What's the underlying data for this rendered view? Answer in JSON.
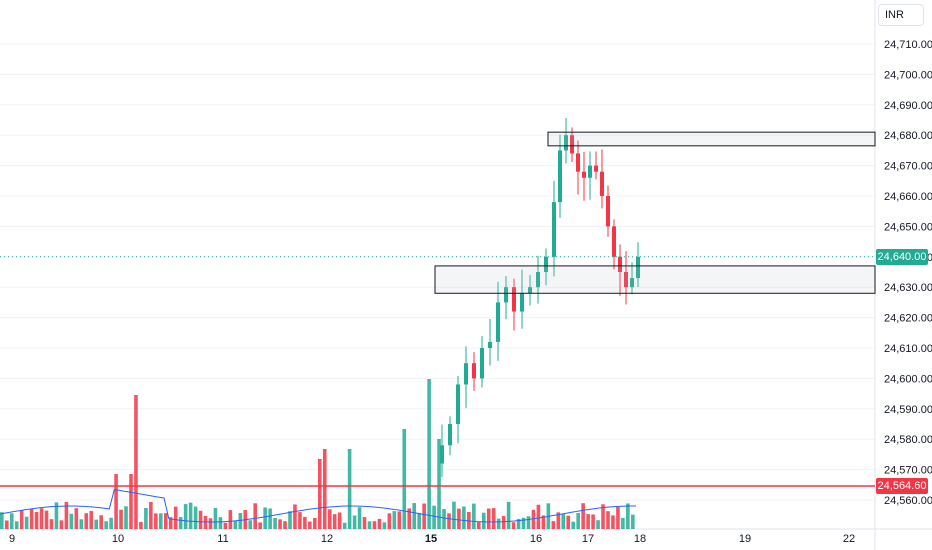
{
  "currency": "INR",
  "price_labels": [
    "24,710.00",
    "24,700.00",
    "24,690.00",
    "24,680.00",
    "24,670.00",
    "24,660.00",
    "24,650.00",
    "24,640.00",
    "24,630.00",
    "24,620.00",
    "24,610.00",
    "24,600.00",
    "24,590.00",
    "24,580.00",
    "24,570.00",
    "24,560.00"
  ],
  "price_values": [
    24710,
    24700,
    24690,
    24680,
    24670,
    24660,
    24650,
    24640,
    24630,
    24620,
    24610,
    24600,
    24590,
    24580,
    24570,
    24560
  ],
  "time_labels": [
    {
      "label": "9",
      "bold": false
    },
    {
      "label": "10",
      "bold": false
    },
    {
      "label": "11",
      "bold": false
    },
    {
      "label": "12",
      "bold": false
    },
    {
      "label": "15",
      "bold": true
    },
    {
      "label": "16",
      "bold": false
    },
    {
      "label": "17",
      "bold": false
    },
    {
      "label": "18",
      "bold": false
    },
    {
      "label": "19",
      "bold": false
    },
    {
      "label": "22",
      "bold": false
    }
  ],
  "last_price": {
    "label": "24,640.00",
    "value": 24640,
    "color": "#22ab94"
  },
  "level_line": {
    "label": "24,564.60",
    "value": 24564.6,
    "color": "#f23645"
  },
  "zones": [
    {
      "name": "upper-zone",
      "top": 24681,
      "bottom": 24676.5
    },
    {
      "name": "lower-zone",
      "top": 24637,
      "bottom": 24628
    }
  ],
  "colors": {
    "up": "#22ab94",
    "down": "#f23645",
    "avg_volume": "#2962ff",
    "grid": "#f0f3fa"
  },
  "chart_data": {
    "type": "candlestick",
    "y_range": [
      24556,
      24718
    ],
    "candles_first_session": 1,
    "note_series": "price action rising from ~24,570 on the 15th to ~24,688 on the 16th then pulling back to ~24,640 on the 17th"
  }
}
